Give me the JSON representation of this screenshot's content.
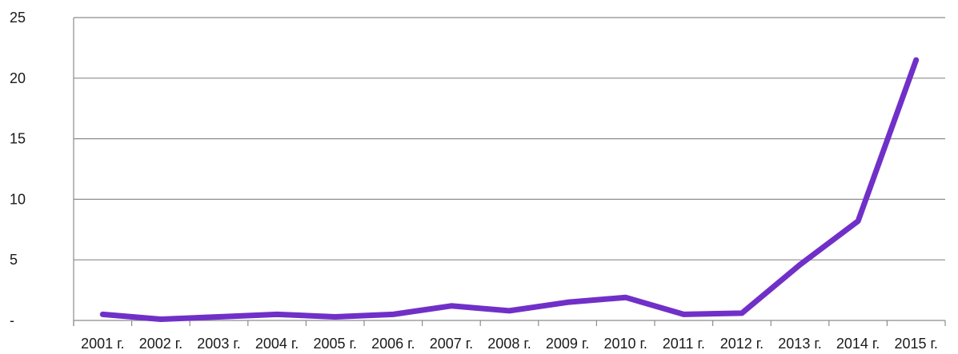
{
  "chart_data": {
    "type": "line",
    "title": "",
    "xlabel": "",
    "ylabel": "",
    "categories": [
      "2001 г.",
      "2002 г.",
      "2003 г.",
      "2004 г.",
      "2005 г.",
      "2006 г.",
      "2007 г.",
      "2008 г.",
      "2009 г.",
      "2010 г.",
      "2011 г.",
      "2012 г.",
      "2013 г.",
      "2014 г.",
      "2015 г."
    ],
    "series": [
      {
        "values": [
          0.5,
          0.1,
          0.3,
          0.5,
          0.3,
          0.5,
          1.2,
          0.8,
          1.5,
          1.9,
          0.5,
          0.6,
          4.6,
          8.2,
          21.5
        ],
        "color": "#7030c8"
      }
    ],
    "ylim": [
      0,
      25
    ],
    "y_ticks": [
      {
        "value": 0,
        "label": "-"
      },
      {
        "value": 5,
        "label": "5"
      },
      {
        "value": 10,
        "label": "10"
      },
      {
        "value": 15,
        "label": "15"
      },
      {
        "value": 20,
        "label": "20"
      },
      {
        "value": 25,
        "label": "25"
      }
    ],
    "grid": true,
    "legend": "none"
  }
}
